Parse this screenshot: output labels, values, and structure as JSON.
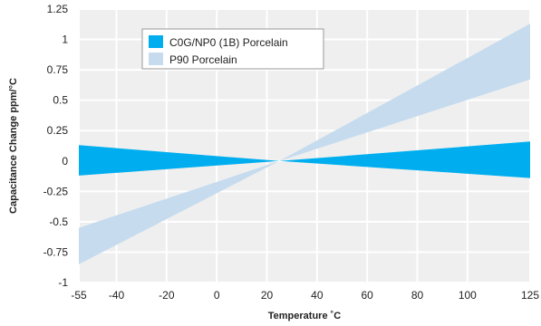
{
  "chart_data": {
    "type": "area",
    "xlabel": "Temperature ˚C",
    "ylabel": "Capacitance Change ppm/°C",
    "xlim": [
      -55,
      125
    ],
    "ylim": [
      -1,
      1.25
    ],
    "x_ticks": [
      -55,
      -40,
      -20,
      0,
      20,
      40,
      60,
      80,
      100,
      125
    ],
    "x_tick_labels": [
      "-55",
      "-40",
      "-20",
      "0",
      "20",
      "40",
      "60",
      "80",
      "100",
      "125"
    ],
    "y_ticks": [
      1.25,
      1,
      0.75,
      0.5,
      0.25,
      0,
      -0.25,
      -0.5,
      -0.75,
      -1
    ],
    "y_tick_labels": [
      "1.25",
      "1",
      "0.75",
      "0.5",
      "0.25",
      "0",
      "-0.25",
      "-0.5",
      "-0.75",
      "-1"
    ],
    "grid": true,
    "legend_position": "top-left",
    "series": [
      {
        "name": "P90 Porcelain",
        "color": "#c6dcee",
        "pivot": [
          25,
          0
        ],
        "upper": [
          [
            -55,
            -0.55
          ],
          [
            125,
            1.13
          ]
        ],
        "lower": [
          [
            -55,
            -0.85
          ],
          [
            125,
            0.67
          ]
        ]
      },
      {
        "name": "C0G/NP0 (1B) Porcelain",
        "color": "#00aeef",
        "pivot": [
          25,
          0
        ],
        "upper": [
          [
            -55,
            0.13
          ],
          [
            125,
            0.16
          ]
        ],
        "lower": [
          [
            -55,
            -0.12
          ],
          [
            125,
            -0.14
          ]
        ]
      }
    ],
    "legend": [
      {
        "label": "C0G/NP0 (1B) Porcelain",
        "color": "#00aeef"
      },
      {
        "label": "P90 Porcelain",
        "color": "#c6dcee"
      }
    ]
  }
}
